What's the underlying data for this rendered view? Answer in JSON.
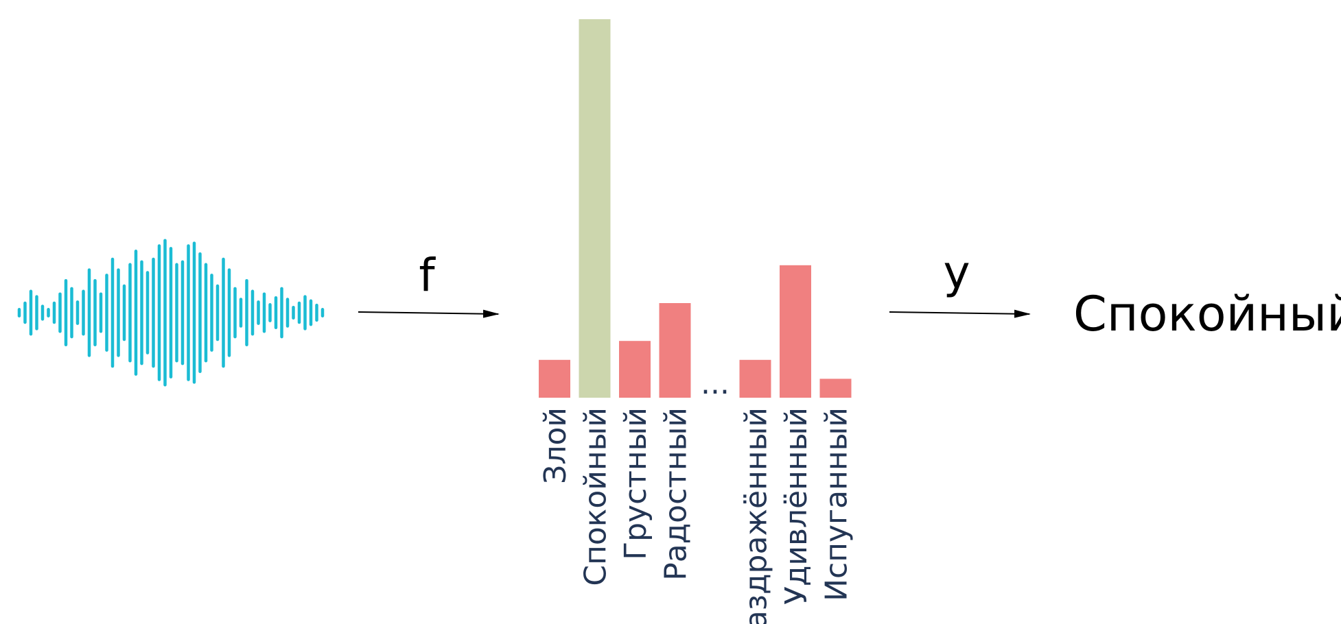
{
  "diagram": {
    "function_label": "f",
    "output_label": "y",
    "result_label": "Спокойный",
    "ellipsis": "...",
    "waveform": {
      "icon": "sound-wave-icon",
      "color": "#1bbcd4",
      "amplitudes": [
        0.06,
        0.18,
        0.4,
        0.3,
        0.12,
        0.06,
        0.18,
        0.35,
        0.6,
        0.45,
        0.2,
        0.4,
        0.8,
        0.6,
        0.35,
        0.7,
        1.0,
        0.8,
        0.5,
        0.9,
        1.15,
        0.95,
        0.75,
        1.0,
        1.25,
        1.35,
        1.2,
        0.9,
        0.95,
        1.25,
        1.3,
        1.1,
        0.9,
        0.7,
        0.5,
        1.0,
        0.8,
        0.45,
        0.25,
        0.6,
        0.4,
        0.2,
        0.35,
        0.15,
        0.28,
        0.45,
        0.25,
        0.1,
        0.18,
        0.3,
        0.22,
        0.14,
        0.06
      ]
    },
    "colors": {
      "highlight": "#ccd6ad",
      "bar": "#f08080",
      "arrow": "#000000",
      "label": "#233554"
    }
  },
  "chart_data": {
    "type": "bar",
    "categories": [
      "Злой",
      "Спокойный",
      "Грустный",
      "Радостный",
      "...",
      "Раздражённый",
      "Удивлённый",
      "Испуганный"
    ],
    "values": [
      0.1,
      1.0,
      0.15,
      0.25,
      null,
      0.1,
      0.35,
      0.05
    ],
    "highlighted_index": 1,
    "ylim": [
      0,
      1
    ],
    "grid": false,
    "legend": "none"
  }
}
